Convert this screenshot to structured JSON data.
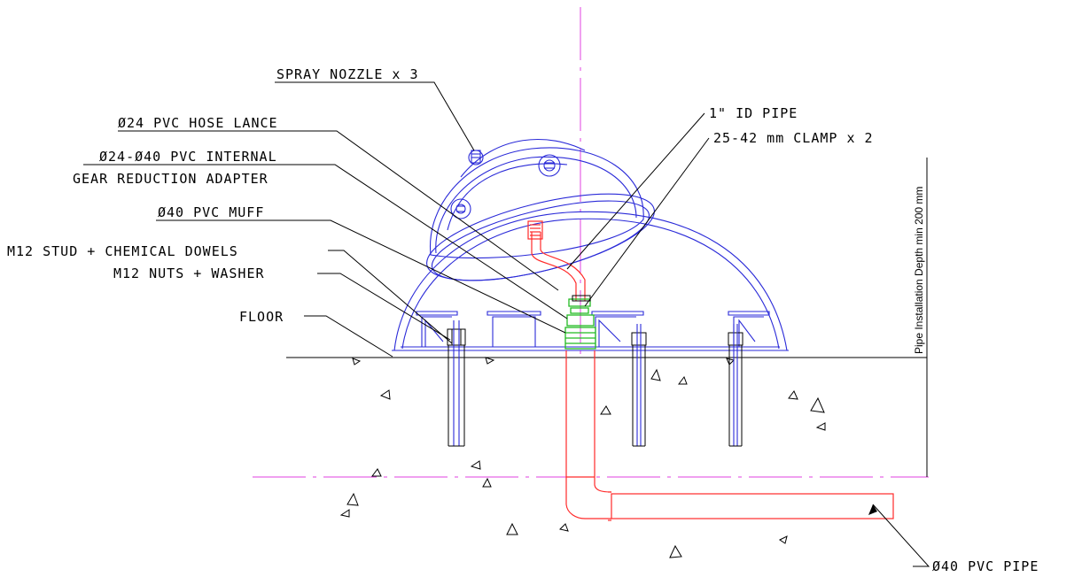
{
  "colors": {
    "outline": "#2a2ad8",
    "pipe": "#ff2a2a",
    "adapter": "#22bb22",
    "centerline": "#e040e0",
    "text": "#000000"
  },
  "labels": {
    "spray_nozzle": "SPRAY NOZZLE x 3",
    "hose_lance": "Ø24 PVC HOSE LANCE",
    "internal_line1": "Ø24-Ø40 PVC INTERNAL",
    "internal_line2": "GEAR REDUCTION ADAPTER",
    "muff": "Ø40 PVC MUFF",
    "stud": "M12 STUD + CHEMICAL DOWELS",
    "nuts": "M12 NUTS + WASHER",
    "floor": "FLOOR",
    "id_pipe": "1\" ID PIPE",
    "clamp": "25-42 mm CLAMP x 2",
    "pvc_pipe": "Ø40 PVC PIPE",
    "depth": "Pipe Installation Depth min 200 mm"
  }
}
